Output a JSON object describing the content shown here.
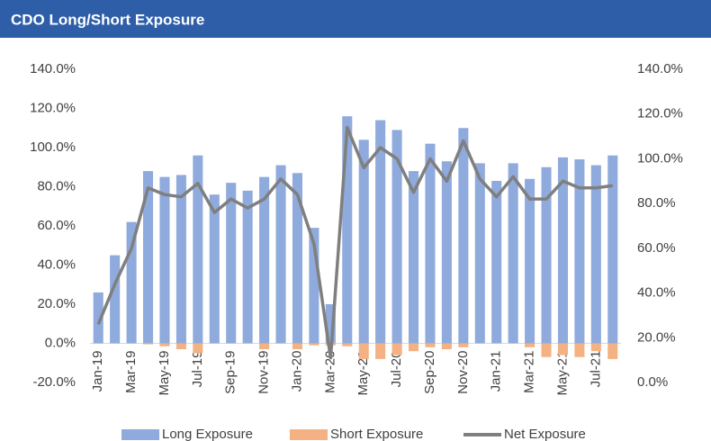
{
  "chart_data": {
    "type": "bar-line",
    "title": "CDO Long/Short Exposure",
    "categories": [
      "Jan-19",
      null,
      "Mar-19",
      null,
      "May-19",
      null,
      "Jul-19",
      null,
      "Sep-19",
      null,
      "Nov-19",
      null,
      "Jan-20",
      null,
      "Mar-20",
      null,
      "May-20",
      null,
      "Jul-20",
      null,
      "Sep-20",
      null,
      "Nov-20",
      null,
      "Jan-21",
      null,
      "Mar-21",
      null,
      "May-21",
      null,
      "Jul-21",
      null
    ],
    "series": [
      {
        "name": "Long Exposure",
        "color": "#8faadc",
        "type": "bar",
        "values": [
          26,
          45,
          62,
          88,
          85,
          86,
          96,
          76,
          82,
          78,
          85,
          91,
          87,
          59,
          20,
          116,
          104,
          114,
          109,
          88,
          102,
          93,
          110,
          92,
          83,
          92,
          84,
          90,
          95,
          94,
          91,
          96
        ]
      },
      {
        "name": "Short Exposure",
        "color": "#f4b183",
        "type": "bar",
        "values": [
          0,
          0,
          0,
          -0.5,
          -1.5,
          -3,
          -5,
          0,
          0,
          0,
          -3,
          0,
          -3,
          -1,
          -1,
          -1.5,
          -8,
          -8,
          -6,
          -4,
          -2,
          -3,
          -2,
          0,
          0,
          0,
          -2,
          -7,
          -6,
          -7,
          -4,
          -8
        ]
      },
      {
        "name": "Net Exposure",
        "color": "#7f7f7f",
        "type": "line",
        "axis": "y2",
        "values": [
          26,
          44,
          60,
          87,
          84,
          83,
          89,
          76,
          82,
          78,
          82,
          91,
          84,
          62,
          11,
          114,
          96,
          105,
          100,
          85,
          100,
          90,
          108,
          91,
          83,
          92,
          82,
          82,
          90,
          87,
          87,
          88
        ]
      }
    ],
    "ylim": [
      -20,
      140
    ],
    "yticks": [
      {
        "value": -20,
        "label": "-20.0%"
      },
      {
        "value": 0,
        "label": "0.0%"
      },
      {
        "value": 20,
        "label": "20.0%"
      },
      {
        "value": 40,
        "label": "40.0%"
      },
      {
        "value": 60,
        "label": "60.0%"
      },
      {
        "value": 80,
        "label": "80.0%"
      },
      {
        "value": 100,
        "label": "100.0%"
      },
      {
        "value": 120,
        "label": "120.0%"
      },
      {
        "value": 140,
        "label": "140.0%"
      }
    ],
    "y2lim": [
      0,
      140
    ],
    "y2ticks": [
      {
        "value": 0,
        "label": "0.0%"
      },
      {
        "value": 20,
        "label": "20.0%"
      },
      {
        "value": 40,
        "label": "40.0%"
      },
      {
        "value": 60,
        "label": "60.0%"
      },
      {
        "value": 80,
        "label": "80.0%"
      },
      {
        "value": 100,
        "label": "100.0%"
      },
      {
        "value": 120,
        "label": "120.0%"
      },
      {
        "value": 140,
        "label": "140.0%"
      }
    ],
    "grid": false,
    "legend": "bottom"
  }
}
